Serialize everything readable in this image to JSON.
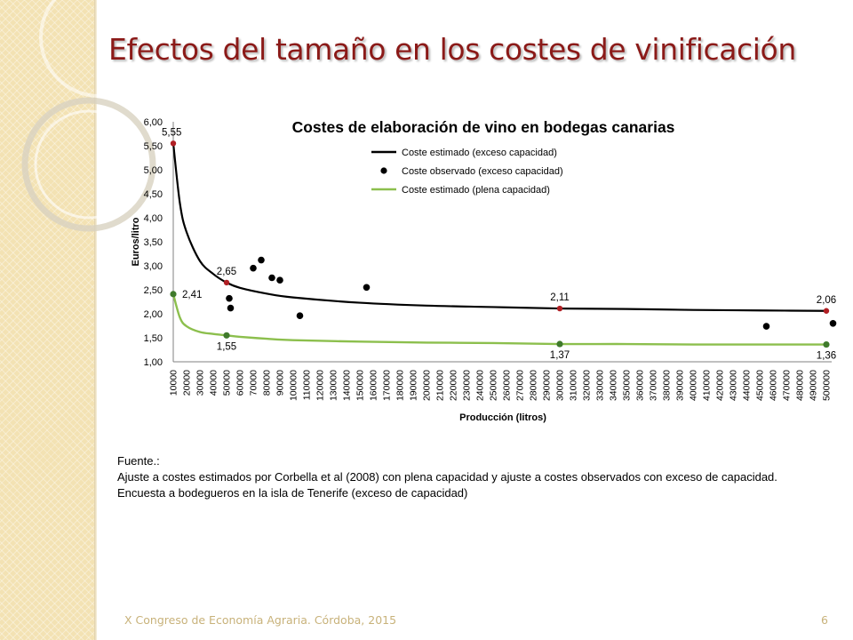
{
  "slide": {
    "title": "Efectos del tamaño en los costes de vinificación",
    "footer": "X Congreso de Economía Agraria. Córdoba, 2015",
    "page_number": "6",
    "colors": {
      "title": "#8b1a18",
      "background_strip": "#f3e2b3",
      "footer": "#c8b27a"
    }
  },
  "source": {
    "heading": "Fuente.:",
    "line1": "Ajuste a costes estimados por Corbella et al (2008) con plena capacidad y ajuste a costes observados con exceso de capacidad.",
    "line2": "Encuesta a bodegueros en la isla de Tenerife (exceso de capacidad)"
  },
  "chart_data": {
    "type": "line",
    "title": "Costes de elaboración de vino en bodegas canarias",
    "xlabel": "Producción (litros)",
    "ylabel": "Euros/litro",
    "xlim": [
      10000,
      500000
    ],
    "ylim": [
      1.0,
      6.0
    ],
    "y_ticks": [
      "1,00",
      "1,50",
      "2,00",
      "2,50",
      "3,00",
      "3,50",
      "4,00",
      "4,50",
      "5,00",
      "5,50",
      "6,00"
    ],
    "x_ticks": [
      "10000",
      "20000",
      "30000",
      "40000",
      "50000",
      "60000",
      "70000",
      "80000",
      "90000",
      "100000",
      "110000",
      "120000",
      "130000",
      "140000",
      "150000",
      "160000",
      "170000",
      "180000",
      "190000",
      "200000",
      "210000",
      "220000",
      "230000",
      "240000",
      "250000",
      "260000",
      "270000",
      "280000",
      "290000",
      "300000",
      "310000",
      "320000",
      "330000",
      "340000",
      "350000",
      "360000",
      "370000",
      "380000",
      "390000",
      "400000",
      "410000",
      "420000",
      "430000",
      "440000",
      "450000",
      "460000",
      "470000",
      "480000",
      "490000",
      "500000"
    ],
    "legend_position": "top-right",
    "legend": [
      {
        "label": "Coste estimado (exceso capacidad)",
        "kind": "line",
        "color": "#000000"
      },
      {
        "label": "Coste observado (exceso capacidad)",
        "kind": "marker",
        "color": "#000000"
      },
      {
        "label": "Coste estimado (plena capacidad)",
        "kind": "line",
        "color": "#8cbf4d"
      }
    ],
    "series": [
      {
        "name": "Coste estimado (exceso capacidad)",
        "color": "#000000",
        "x": [
          10000,
          15000,
          20000,
          30000,
          40000,
          50000,
          60000,
          80000,
          100000,
          150000,
          200000,
          250000,
          300000,
          350000,
          400000,
          450000,
          500000
        ],
        "y": [
          5.55,
          4.3,
          3.7,
          3.1,
          2.83,
          2.65,
          2.54,
          2.42,
          2.34,
          2.23,
          2.17,
          2.14,
          2.11,
          2.1,
          2.08,
          2.07,
          2.06
        ]
      },
      {
        "name": "Coste observado (exceso capacidad)",
        "color": "#000000",
        "x": [
          70000,
          76000,
          84000,
          90000,
          52000,
          53000,
          105000,
          155000,
          455000,
          505000
        ],
        "y": [
          2.95,
          3.12,
          2.75,
          2.7,
          2.32,
          2.12,
          1.96,
          2.55,
          1.74,
          1.8
        ]
      },
      {
        "name": "Coste estimado (plena capacidad)",
        "color": "#8cbf4d",
        "x": [
          10000,
          15000,
          20000,
          30000,
          40000,
          50000,
          60000,
          80000,
          100000,
          150000,
          200000,
          250000,
          300000,
          350000,
          400000,
          450000,
          500000
        ],
        "y": [
          2.41,
          1.92,
          1.74,
          1.62,
          1.58,
          1.55,
          1.52,
          1.48,
          1.45,
          1.42,
          1.4,
          1.39,
          1.37,
          1.37,
          1.36,
          1.36,
          1.36
        ]
      }
    ],
    "annotations": [
      {
        "x": 10000,
        "y": 5.55,
        "label": "5,55",
        "series": "exceso",
        "marker_color": "#b01f24",
        "label_pos": "above"
      },
      {
        "x": 50000,
        "y": 2.65,
        "label": "2,65",
        "series": "exceso",
        "marker_color": "#b01f24",
        "label_pos": "above"
      },
      {
        "x": 300000,
        "y": 2.11,
        "label": "2,11",
        "series": "exceso",
        "marker_color": "#b01f24",
        "label_pos": "above"
      },
      {
        "x": 500000,
        "y": 2.06,
        "label": "2,06",
        "series": "exceso",
        "marker_color": "#b01f24",
        "label_pos": "above"
      },
      {
        "x": 10000,
        "y": 2.41,
        "label": "2,41",
        "series": "plena",
        "marker_color": "#3f7a2b",
        "label_pos": "right"
      },
      {
        "x": 50000,
        "y": 1.55,
        "label": "1,55",
        "series": "plena",
        "marker_color": "#3f7a2b",
        "label_pos": "below"
      },
      {
        "x": 300000,
        "y": 1.37,
        "label": "1,37",
        "series": "plena",
        "marker_color": "#3f7a2b",
        "label_pos": "below"
      },
      {
        "x": 500000,
        "y": 1.36,
        "label": "1,36",
        "series": "plena",
        "marker_color": "#3f7a2b",
        "label_pos": "below"
      }
    ],
    "grid": false
  }
}
